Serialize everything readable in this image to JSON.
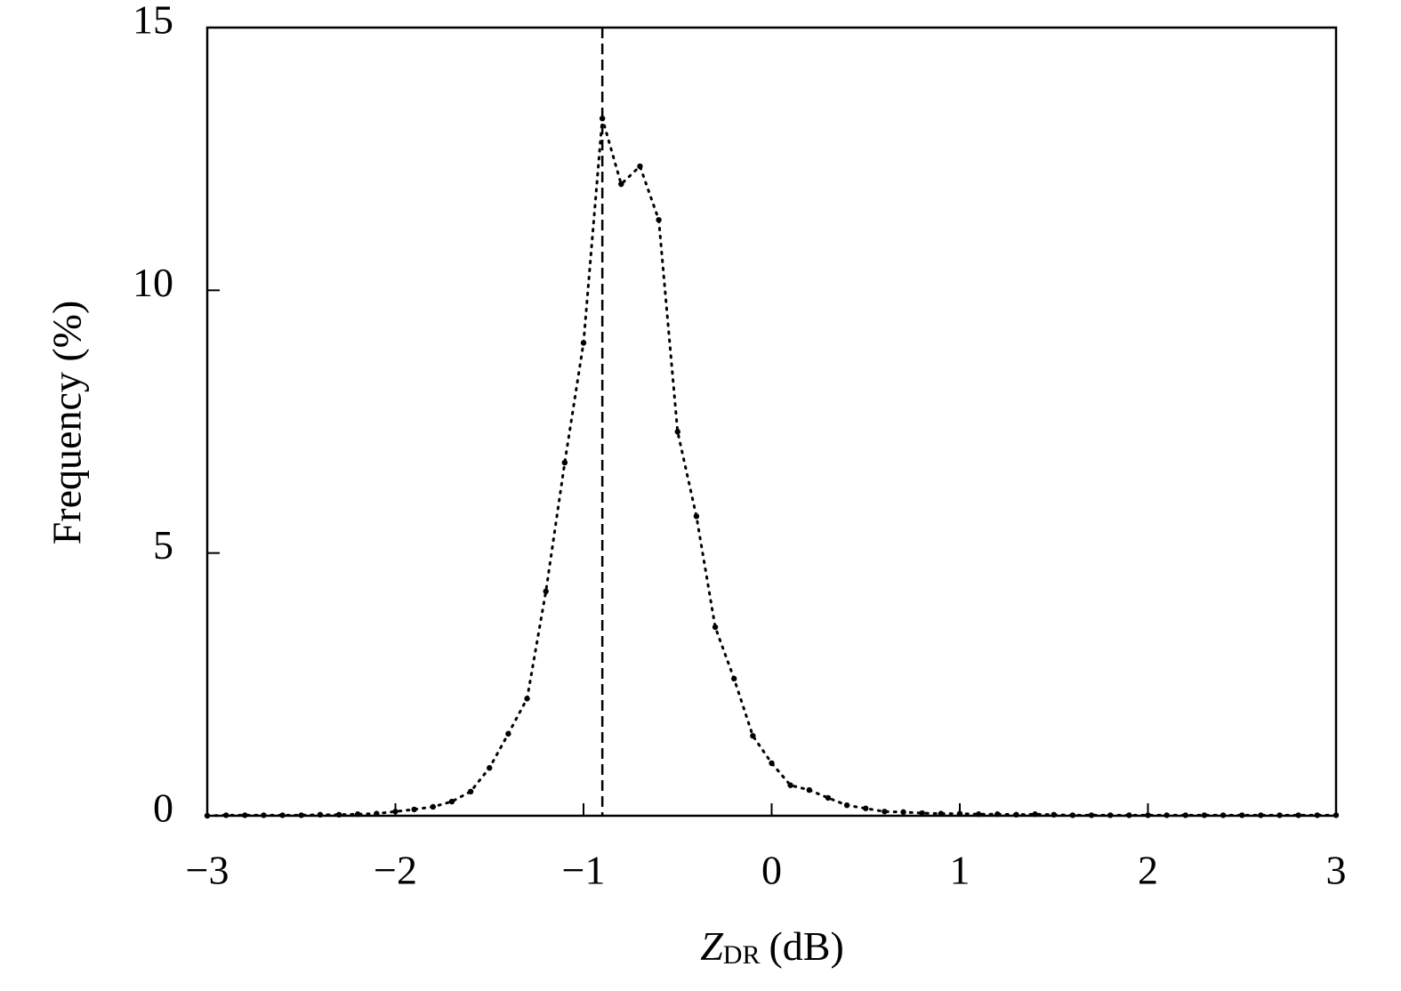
{
  "chart_data": {
    "type": "line",
    "x_label": {
      "symbol": "Z",
      "subscript": "DR",
      "unit": "(dB)"
    },
    "y_label": "Frequency (%)",
    "x": [
      -3.0,
      -2.9,
      -2.8,
      -2.7,
      -2.6,
      -2.5,
      -2.4,
      -2.3,
      -2.2,
      -2.1,
      -2.0,
      -1.9,
      -1.8,
      -1.7,
      -1.6,
      -1.5,
      -1.4,
      -1.3,
      -1.2,
      -1.1,
      -1.0,
      -0.9,
      -0.8,
      -0.7,
      -0.6,
      -0.5,
      -0.4,
      -0.3,
      -0.2,
      -0.1,
      0.0,
      0.1,
      0.2,
      0.3,
      0.4,
      0.5,
      0.6,
      0.7,
      0.8,
      0.9,
      1.0,
      1.1,
      1.2,
      1.3,
      1.4,
      1.5,
      1.6,
      1.7,
      1.8,
      1.9,
      2.0,
      2.1,
      2.2,
      2.3,
      2.4,
      2.5,
      2.6,
      2.7,
      2.8,
      2.9,
      3.0
    ],
    "values": [
      0.0,
      0.01,
      0.01,
      0.01,
      0.01,
      0.01,
      0.02,
      0.02,
      0.03,
      0.04,
      0.08,
      0.12,
      0.17,
      0.27,
      0.46,
      0.91,
      1.56,
      2.23,
      4.27,
      6.72,
      9.0,
      13.27,
      12.02,
      12.36,
      11.34,
      7.31,
      5.7,
      3.59,
      2.61,
      1.52,
      1.0,
      0.58,
      0.49,
      0.34,
      0.2,
      0.14,
      0.08,
      0.07,
      0.05,
      0.04,
      0.04,
      0.03,
      0.03,
      0.02,
      0.03,
      0.02,
      0.01,
      0.01,
      0.01,
      0.01,
      0.01,
      0.01,
      0.01,
      0.01,
      0.01,
      0.01,
      0.01,
      0.01,
      0.01,
      0.01,
      0.01
    ],
    "color": "#000000",
    "vline": -0.9,
    "xlim": [
      -3,
      3
    ],
    "xticks": [
      {
        "value": -3,
        "label": "−3"
      },
      {
        "value": -2,
        "label": "−2"
      },
      {
        "value": -1,
        "label": "−1"
      },
      0,
      1,
      2,
      3
    ],
    "ylim": [
      0,
      15
    ],
    "yticks": [
      0,
      5,
      10,
      15
    ],
    "grid": false
  }
}
